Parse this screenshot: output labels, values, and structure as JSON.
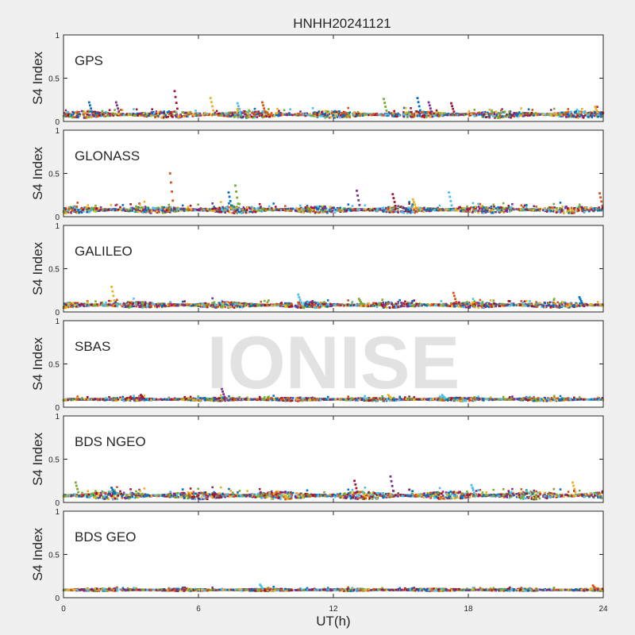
{
  "chart_data": {
    "type": "scatter",
    "title": "HNHH20241121",
    "xlabel": "UT(h)",
    "ylabel": "S4 Index",
    "xlim": [
      0,
      24
    ],
    "ylim": [
      0,
      1
    ],
    "x_ticks": [
      "0",
      "6",
      "12",
      "18",
      "24"
    ],
    "y_ticks": [
      "0",
      "0.5",
      "1"
    ],
    "watermark": "IONISE",
    "grid": false,
    "colors": [
      "#0072BD",
      "#D95319",
      "#EDB120",
      "#7E2F8E",
      "#77AC30",
      "#4DBEEE",
      "#A2142F"
    ],
    "panels": [
      {
        "label": "GPS",
        "baseline": 0.08,
        "noise": 0.04,
        "spikes": [
          [
            1.2,
            0.22
          ],
          [
            2.4,
            0.22
          ],
          [
            5.0,
            0.35
          ],
          [
            6.6,
            0.27
          ],
          [
            7.8,
            0.21
          ],
          [
            8.9,
            0.22
          ],
          [
            14.3,
            0.26
          ],
          [
            15.8,
            0.27
          ],
          [
            16.3,
            0.22
          ],
          [
            17.3,
            0.21
          ],
          [
            23.7,
            0.17
          ]
        ]
      },
      {
        "label": "GLONASS",
        "baseline": 0.08,
        "noise": 0.04,
        "spikes": [
          [
            4.8,
            0.5
          ],
          [
            7.7,
            0.36
          ],
          [
            7.4,
            0.28
          ],
          [
            13.1,
            0.3
          ],
          [
            14.7,
            0.26
          ],
          [
            15.6,
            0.2
          ],
          [
            17.2,
            0.28
          ],
          [
            23.9,
            0.27
          ]
        ]
      },
      {
        "label": "GALILEO",
        "baseline": 0.08,
        "noise": 0.035,
        "spikes": [
          [
            2.2,
            0.29
          ],
          [
            10.5,
            0.2
          ],
          [
            17.4,
            0.22
          ],
          [
            13.2,
            0.15
          ],
          [
            23.0,
            0.17
          ]
        ]
      },
      {
        "label": "SBAS",
        "baseline": 0.09,
        "noise": 0.02,
        "spikes": [
          [
            7.1,
            0.21
          ],
          [
            3.5,
            0.14
          ],
          [
            14.5,
            0.14
          ],
          [
            16.9,
            0.14
          ]
        ]
      },
      {
        "label": "BDS NGEO",
        "baseline": 0.08,
        "noise": 0.045,
        "spikes": [
          [
            0.6,
            0.23
          ],
          [
            2.2,
            0.17
          ],
          [
            14.6,
            0.3
          ],
          [
            13.0,
            0.25
          ],
          [
            22.7,
            0.23
          ],
          [
            18.2,
            0.2
          ]
        ]
      },
      {
        "label": "BDS GEO",
        "baseline": 0.09,
        "noise": 0.015,
        "spikes": [
          [
            8.8,
            0.15
          ],
          [
            23.6,
            0.14
          ]
        ]
      }
    ]
  }
}
